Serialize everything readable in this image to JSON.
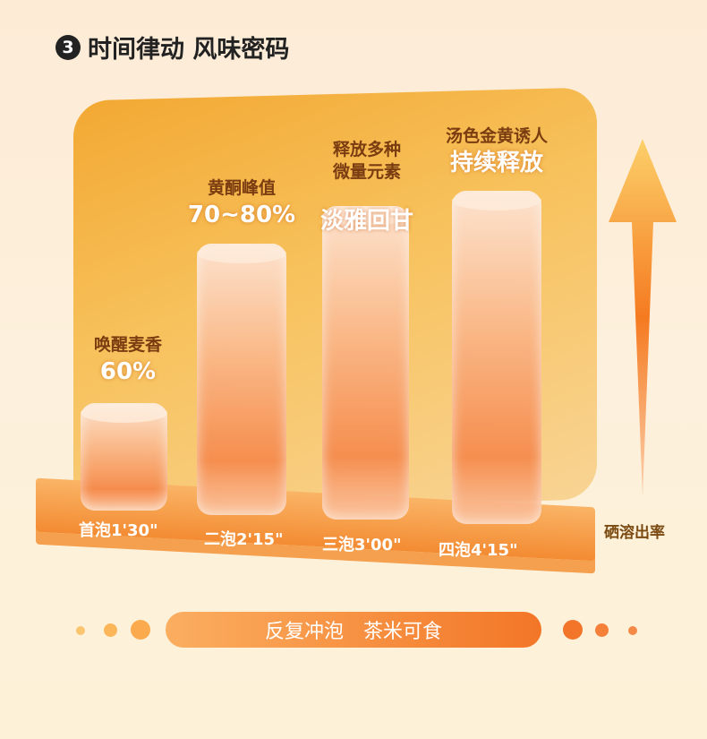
{
  "header": {
    "step": "3",
    "title": "时间律动 风味密码"
  },
  "chart_data": {
    "type": "bar",
    "categories": [
      "首泡1'30\"",
      "二泡2'15\"",
      "三泡3'00\"",
      "四泡4'15\""
    ],
    "annotations": [
      {
        "text": "唤醒麦香",
        "highlight": "60%"
      },
      {
        "text": "黄酮峰值",
        "highlight": "70~80%"
      },
      {
        "text": "释放多种\n微量元素",
        "highlight": "淡雅回甘"
      },
      {
        "text": "汤色金黄诱人",
        "highlight": "持续释放"
      }
    ],
    "ylabel": "硒溶出率",
    "colors": {
      "bar": "#f58a4c",
      "panel": "#f2a52a",
      "arrow": "#f57a20"
    }
  },
  "footer": {
    "left": "反复冲泡",
    "right": "茶米可食"
  }
}
